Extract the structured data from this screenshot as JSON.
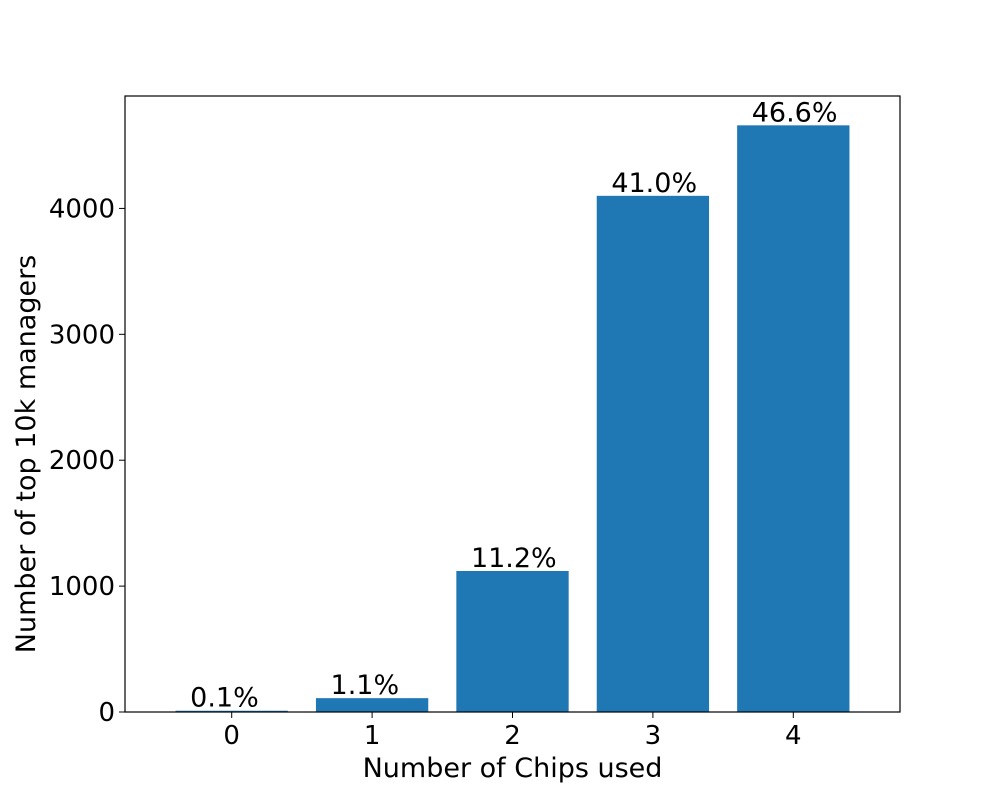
{
  "chart_data": {
    "type": "bar",
    "title": "",
    "xlabel": "Number of Chips used",
    "ylabel": "Number of top 10k managers",
    "categories": [
      "0",
      "1",
      "2",
      "3",
      "4"
    ],
    "values": [
      10,
      110,
      1120,
      4100,
      4660
    ],
    "data_labels": [
      "0.1%",
      "1.1%",
      "11.2%",
      "41.0%",
      "46.6%"
    ],
    "ylim": [
      0,
      4893
    ],
    "yticks": [
      0,
      1000,
      2000,
      3000,
      4000
    ],
    "ytick_labels": [
      "0",
      "1000",
      "2000",
      "3000",
      "4000"
    ],
    "bar_color": "#1f77b4",
    "grid": false,
    "legend": false
  }
}
